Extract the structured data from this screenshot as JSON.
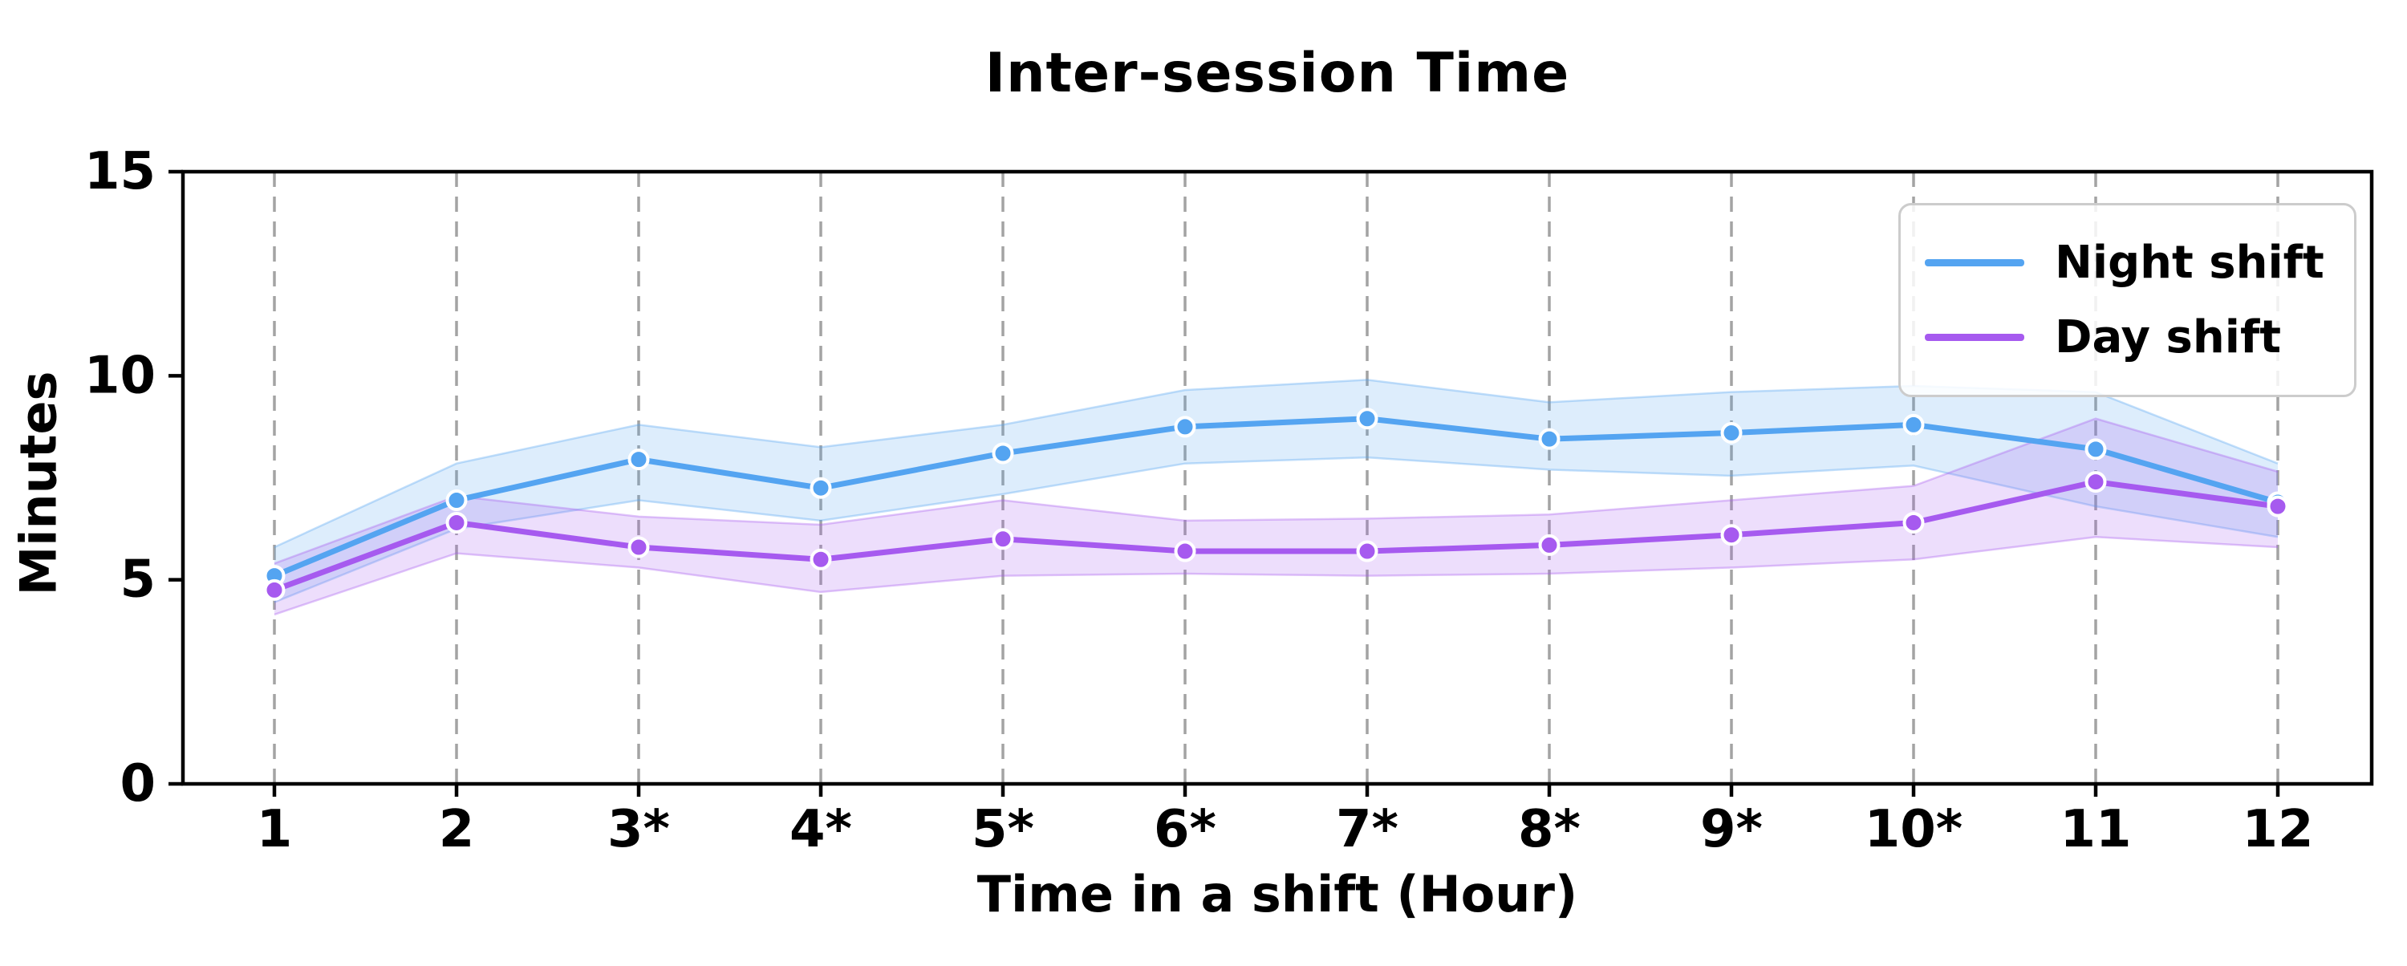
{
  "title": "Inter-session Time",
  "y_axis_label": "Minutes",
  "x_axis_label": "Time in a shift (Hour)",
  "legend": {
    "position": "upper right",
    "items": [
      {
        "label": "Night shift",
        "color": "#54a4f1"
      },
      {
        "label": "Day shift",
        "color": "#a65aef"
      }
    ]
  },
  "colors": {
    "night_line": "#54a4f1",
    "day_line": "#a65aef",
    "band_fill_opacity": "0.2",
    "band_edge_opacity": "0.35",
    "gridline": "#a3a3a3",
    "axis": "#000000",
    "marker_edge": "#ffffff",
    "legend_border": "#cccccc"
  },
  "chart_data": {
    "type": "line",
    "title": "Inter-session Time",
    "xlabel": "Time in a shift (Hour)",
    "ylabel": "Minutes",
    "x": [
      1,
      2,
      3,
      4,
      5,
      6,
      7,
      8,
      9,
      10,
      11,
      12
    ],
    "x_ticklabels": [
      "1",
      "2",
      "3*",
      "4*",
      "5*",
      "6*",
      "7*",
      "8*",
      "9*",
      "10*",
      "11",
      "12"
    ],
    "y_ticks": [
      0,
      5,
      10,
      15
    ],
    "y_ticklabels": [
      "0",
      "5",
      "10",
      "15"
    ],
    "ylim": [
      0,
      15
    ],
    "grid": "vertical dashed gridlines at every x tick",
    "legend_position": "upper right",
    "series": [
      {
        "name": "Night shift",
        "color": "#54a4f1",
        "marker": "circle",
        "values": [
          5.1,
          6.95,
          7.95,
          7.25,
          8.1,
          8.75,
          8.95,
          8.45,
          8.6,
          8.8,
          8.2,
          6.9
        ],
        "band_lower": [
          4.45,
          6.25,
          6.95,
          6.45,
          7.1,
          7.85,
          8.0,
          7.7,
          7.55,
          7.8,
          6.8,
          6.05
        ],
        "band_upper": [
          5.8,
          7.85,
          8.8,
          8.25,
          8.8,
          9.65,
          9.9,
          9.35,
          9.6,
          9.75,
          9.6,
          7.85
        ]
      },
      {
        "name": "Day shift",
        "color": "#a65aef",
        "marker": "circle",
        "values": [
          4.75,
          6.4,
          5.8,
          5.5,
          6.0,
          5.7,
          5.7,
          5.85,
          6.1,
          6.4,
          7.4,
          6.8
        ],
        "band_lower": [
          4.15,
          5.65,
          5.3,
          4.7,
          5.1,
          5.15,
          5.1,
          5.15,
          5.3,
          5.5,
          6.05,
          5.8
        ],
        "band_upper": [
          5.4,
          7.05,
          6.55,
          6.35,
          6.95,
          6.45,
          6.5,
          6.6,
          6.95,
          7.3,
          8.95,
          7.65
        ]
      }
    ]
  }
}
